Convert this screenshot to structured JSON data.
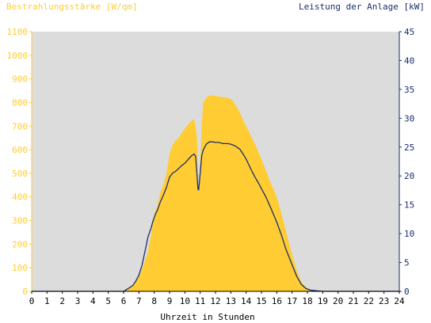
{
  "chart_data": {
    "type": "area",
    "title": "",
    "left_axis_label": "Bestrahlungsstärke [W/qm]",
    "right_axis_label": "Leistung der Anlage [kW]",
    "xlabel": "Uhrzeit in Stunden",
    "x_ticks": [
      "0",
      "1",
      "2",
      "3",
      "4",
      "5",
      "6",
      "7",
      "8",
      "9",
      "10",
      "11",
      "12",
      "13",
      "14",
      "15",
      "16",
      "17",
      "18",
      "19",
      "20",
      "21",
      "22",
      "23",
      "24"
    ],
    "y_left_ticks": [
      "0",
      "100",
      "200",
      "300",
      "400",
      "500",
      "600",
      "700",
      "800",
      "900",
      "1000",
      "1100"
    ],
    "y_right_ticks": [
      "0",
      "5",
      "10",
      "15",
      "20",
      "25",
      "30",
      "35",
      "40",
      "45"
    ],
    "y_left_lim": [
      0,
      1100
    ],
    "y_right_lim": [
      0,
      45
    ],
    "x_lim": [
      0,
      24
    ],
    "grid": false,
    "colors": {
      "irradiance": "#ffcc33",
      "power": "#1a2f6e",
      "plot_bg": "#dcdcdc",
      "left_axis": "#ffcc33",
      "right_axis": "#1a2f6e"
    },
    "series": [
      {
        "axis": "left",
        "style": "filled-area",
        "x": [
          0,
          6,
          6.3,
          6.6,
          7,
          7.3,
          7.6,
          7.8,
          8,
          8.2,
          8.4,
          8.6,
          8.8,
          9,
          9.2,
          9.4,
          9.6,
          9.8,
          10,
          10.2,
          10.4,
          10.6,
          10.7,
          10.8,
          10.85,
          10.9,
          11,
          11.1,
          11.2,
          11.4,
          11.6,
          11.8,
          12,
          12.2,
          12.5,
          12.8,
          13,
          13.2,
          13.4,
          13.6,
          13.8,
          14,
          14.3,
          14.6,
          15,
          15.3,
          15.6,
          16,
          16.3,
          16.6,
          17,
          17.3,
          17.6,
          18,
          18.3,
          18.6,
          19,
          24
        ],
        "values": [
          0,
          0,
          10,
          25,
          60,
          110,
          170,
          240,
          330,
          360,
          420,
          450,
          500,
          580,
          620,
          640,
          650,
          670,
          690,
          705,
          720,
          730,
          700,
          640,
          460,
          430,
          550,
          700,
          800,
          820,
          830,
          830,
          828,
          825,
          822,
          820,
          815,
          800,
          780,
          755,
          725,
          700,
          660,
          620,
          560,
          510,
          460,
          400,
          330,
          255,
          155,
          90,
          40,
          12,
          4,
          0,
          0,
          0
        ]
      },
      {
        "axis": "right",
        "style": "line",
        "x": [
          0,
          6,
          6.3,
          6.6,
          6.8,
          7,
          7.2,
          7.4,
          7.6,
          7.8,
          7.9,
          8,
          8.1,
          8.2,
          8.4,
          8.6,
          8.8,
          9,
          9.2,
          9.4,
          9.6,
          9.8,
          10,
          10.2,
          10.4,
          10.6,
          10.7,
          10.8,
          10.85,
          10.9,
          11,
          11.1,
          11.2,
          11.4,
          11.6,
          11.8,
          12,
          12.2,
          12.5,
          12.8,
          13,
          13.2,
          13.4,
          13.6,
          13.8,
          14,
          14.2,
          14.4,
          14.6,
          14.8,
          15,
          15.3,
          15.6,
          16,
          16.3,
          16.6,
          17,
          17.3,
          17.6,
          17.9,
          18.2,
          18.6,
          19,
          24
        ],
        "values": [
          0,
          0,
          0.5,
          1,
          1.8,
          2.8,
          4.5,
          7,
          9.5,
          11,
          12,
          12.8,
          13.5,
          14,
          15.5,
          16.7,
          18,
          19.8,
          20.5,
          20.8,
          21.3,
          21.8,
          22.2,
          22.8,
          23.4,
          23.8,
          23.4,
          20,
          17.8,
          17.5,
          20.5,
          23.5,
          24.5,
          25.5,
          25.9,
          25.9,
          25.8,
          25.8,
          25.6,
          25.6,
          25.5,
          25.3,
          25,
          24.6,
          23.8,
          22.9,
          21.8,
          20.7,
          19.7,
          18.8,
          17.8,
          16.3,
          14.5,
          12,
          9.8,
          7.3,
          4.6,
          2.6,
          1.2,
          0.5,
          0.2,
          0.1,
          0,
          0
        ]
      }
    ]
  }
}
